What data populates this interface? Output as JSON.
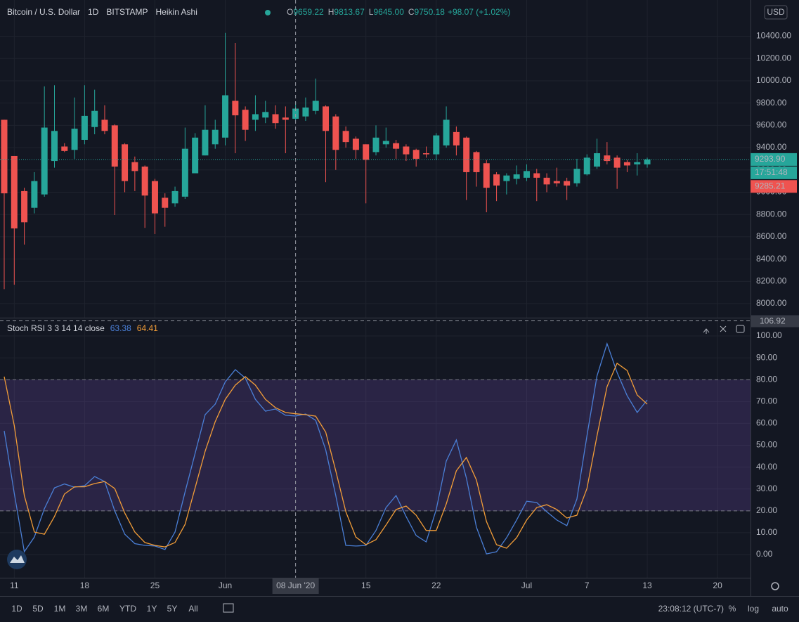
{
  "chart_data": [
    {
      "type": "candlestick",
      "title": "Bitcoin / U.S. Dollar",
      "interval": "1D",
      "exchange": "BITSTAMP",
      "chart_style": "Heikin Ashi",
      "legend": [
        {
          "key": "O",
          "text": "9659.22"
        },
        {
          "key": "H",
          "text": "9813.67"
        },
        {
          "key": "L",
          "text": "9645.00"
        },
        {
          "key": "C",
          "text": "9750.18"
        }
      ],
      "change": "+98.07 (+1.02%)",
      "currency": "USD",
      "x": [
        "2020-05-10",
        "2020-05-11",
        "2020-05-12",
        "2020-05-13",
        "2020-05-14",
        "2020-05-15",
        "2020-05-16",
        "2020-05-17",
        "2020-05-18",
        "2020-05-19",
        "2020-05-20",
        "2020-05-21",
        "2020-05-22",
        "2020-05-23",
        "2020-05-24",
        "2020-05-25",
        "2020-05-26",
        "2020-05-27",
        "2020-05-28",
        "2020-05-29",
        "2020-05-30",
        "2020-05-31",
        "2020-06-01",
        "2020-06-02",
        "2020-06-03",
        "2020-06-04",
        "2020-06-05",
        "2020-06-06",
        "2020-06-07",
        "2020-06-08",
        "2020-06-09",
        "2020-06-10",
        "2020-06-11",
        "2020-06-12",
        "2020-06-13",
        "2020-06-14",
        "2020-06-15",
        "2020-06-16",
        "2020-06-17",
        "2020-06-18",
        "2020-06-19",
        "2020-06-20",
        "2020-06-21",
        "2020-06-22",
        "2020-06-23",
        "2020-06-24",
        "2020-06-25",
        "2020-06-26",
        "2020-06-27",
        "2020-06-28",
        "2020-06-29",
        "2020-06-30",
        "2020-07-01",
        "2020-07-02",
        "2020-07-03",
        "2020-07-04",
        "2020-07-05",
        "2020-07-06",
        "2020-07-07",
        "2020-07-08",
        "2020-07-09",
        "2020-07-10",
        "2020-07-11",
        "2020-07-12",
        "2020-07-13"
      ],
      "open": [
        9650,
        9325,
        9010,
        8860,
        8980,
        9280,
        9410,
        9380,
        9470,
        9585,
        9650,
        9600,
        9430,
        9270,
        9230,
        9100,
        8950,
        8900,
        8960,
        9170,
        9330,
        9430,
        9490,
        9820,
        9740,
        9650,
        9670,
        9700,
        9670,
        9659.22,
        9680,
        9730,
        9770,
        9680,
        9550,
        9480,
        9430,
        9360,
        9430,
        9440,
        9410,
        9380,
        9350,
        9340,
        9420,
        9540,
        9490,
        9360,
        9260,
        9160,
        9100,
        9120,
        9130,
        9170,
        9130,
        9100,
        9100,
        9080,
        9160,
        9230,
        9330,
        9310,
        9270,
        9250,
        9250
      ],
      "high": [
        9650,
        9325,
        9040,
        9180,
        9950,
        9960,
        9440,
        9850,
        9960,
        9920,
        9780,
        9610,
        9440,
        9320,
        9240,
        9120,
        8990,
        9050,
        9580,
        9530,
        9780,
        9650,
        10430,
        10340,
        9770,
        9870,
        9820,
        9780,
        9770,
        9813.67,
        9850,
        10020,
        9780,
        9700,
        9590,
        9500,
        9430,
        9600,
        9580,
        9470,
        9430,
        9390,
        9410,
        9530,
        9770,
        9590,
        9500,
        9370,
        9290,
        9180,
        9170,
        9240,
        9250,
        9210,
        9170,
        9220,
        9130,
        9300,
        9340,
        9480,
        9450,
        9330,
        9290,
        9350,
        9310
      ],
      "low": [
        8130,
        8170,
        8530,
        8810,
        8960,
        9220,
        9360,
        9300,
        9430,
        9520,
        9520,
        8795,
        9000,
        9010,
        8680,
        8625,
        8690,
        8870,
        8940,
        9170,
        9330,
        9390,
        9420,
        9350,
        9460,
        9550,
        9620,
        9570,
        9350,
        9645,
        9640,
        9700,
        9090,
        9200,
        9400,
        9300,
        8900,
        9330,
        9400,
        9300,
        9280,
        9230,
        9310,
        9290,
        9400,
        9330,
        8930,
        9050,
        8820,
        8920,
        8980,
        9070,
        9100,
        8920,
        9000,
        9050,
        8930,
        9050,
        9150,
        9210,
        9250,
        9030,
        9180,
        9150,
        9220
      ],
      "close": [
        8990,
        8675,
        8730,
        9100,
        9580,
        9550,
        9370,
        9570,
        9685,
        9730,
        9550,
        9230,
        9100,
        9190,
        8970,
        8810,
        8860,
        9010,
        9390,
        9490,
        9560,
        9560,
        9870,
        9690,
        9560,
        9700,
        9720,
        9620,
        9650,
        9750.18,
        9760,
        9820,
        9550,
        9380,
        9450,
        9380,
        9290,
        9490,
        9460,
        9390,
        9340,
        9300,
        9340,
        9510,
        9650,
        9420,
        9180,
        9180,
        9040,
        9060,
        9150,
        9160,
        9190,
        9130,
        9070,
        9080,
        9060,
        9210,
        9310,
        9350,
        9280,
        9220,
        9240,
        9270,
        9293.9
      ],
      "up_color": "#26a69a",
      "down_color": "#ef5350",
      "xlim": [
        "2020-05-10",
        "2020-07-23"
      ],
      "ylim": [
        7874,
        10725
      ],
      "yticks": [
        {
          "value": 8000,
          "label": "8000.00"
        },
        {
          "value": 8200,
          "label": "8200.00"
        },
        {
          "value": 8400,
          "label": "8400.00"
        },
        {
          "value": 8600,
          "label": "8600.00"
        },
        {
          "value": 8800,
          "label": "8800.00"
        },
        {
          "value": 9000,
          "label": "9000.00"
        },
        {
          "value": 9200,
          "label": "9200.00"
        },
        {
          "value": 9400,
          "label": "9400.00"
        },
        {
          "value": 9600,
          "label": "9600.00"
        },
        {
          "value": 9800,
          "label": "9800.00"
        },
        {
          "value": 10000,
          "label": "10000.00"
        },
        {
          "value": 10200,
          "label": "10200.00"
        },
        {
          "value": 10400,
          "label": "10400.00"
        }
      ],
      "grid": true,
      "last_price": {
        "value": 9293.9,
        "label": "9293.90"
      },
      "countdown": "17:51:48",
      "prev_price": {
        "value": 9285.21,
        "label": "9285.21"
      },
      "crosshair": {
        "x": "2020-06-08",
        "label": "08 Jun '20"
      }
    },
    {
      "type": "line",
      "title": "Stoch RSI 3 3 14 14 close",
      "x": [
        "2020-05-10",
        "2020-05-11",
        "2020-05-12",
        "2020-05-13",
        "2020-05-14",
        "2020-05-15",
        "2020-05-16",
        "2020-05-17",
        "2020-05-18",
        "2020-05-19",
        "2020-05-20",
        "2020-05-21",
        "2020-05-22",
        "2020-05-23",
        "2020-05-24",
        "2020-05-25",
        "2020-05-26",
        "2020-05-27",
        "2020-05-28",
        "2020-05-29",
        "2020-05-30",
        "2020-05-31",
        "2020-06-01",
        "2020-06-02",
        "2020-06-03",
        "2020-06-04",
        "2020-06-05",
        "2020-06-06",
        "2020-06-07",
        "2020-06-08",
        "2020-06-09",
        "2020-06-10",
        "2020-06-11",
        "2020-06-12",
        "2020-06-13",
        "2020-06-14",
        "2020-06-15",
        "2020-06-16",
        "2020-06-17",
        "2020-06-18",
        "2020-06-19",
        "2020-06-20",
        "2020-06-21",
        "2020-06-22",
        "2020-06-23",
        "2020-06-24",
        "2020-06-25",
        "2020-06-26",
        "2020-06-27",
        "2020-06-28",
        "2020-06-29",
        "2020-06-30",
        "2020-07-01",
        "2020-07-02",
        "2020-07-03",
        "2020-07-04",
        "2020-07-05",
        "2020-07-06",
        "2020-07-07",
        "2020-07-08",
        "2020-07-09",
        "2020-07-10",
        "2020-07-11",
        "2020-07-12",
        "2020-07-13"
      ],
      "series": [
        {
          "color": "#4a7fd6",
          "values": [
            56.6,
            28,
            1.3,
            8,
            21,
            30.5,
            32.3,
            30.8,
            31.5,
            35.7,
            33.4,
            20,
            9.3,
            5,
            4.2,
            3.9,
            2.3,
            10.3,
            28.6,
            46.3,
            64,
            68.8,
            79,
            84.6,
            80.7,
            71,
            65.6,
            66.6,
            63.7,
            63.38,
            64.3,
            61.4,
            47.9,
            27,
            4.2,
            3.9,
            4.2,
            11,
            21.5,
            27,
            17.4,
            8.7,
            5.8,
            20.6,
            42.8,
            52.4,
            35,
            12.5,
            0.3,
            1.3,
            7.7,
            15.8,
            24.4,
            23.8,
            19.6,
            15.8,
            13.2,
            25.4,
            54.3,
            81.7,
            96.5,
            83.3,
            72.7,
            65,
            70.7
          ]
        },
        {
          "color": "#f29d38",
          "values": [
            81.4,
            59,
            27,
            10.3,
            9.3,
            17.4,
            27.7,
            31,
            31,
            32.5,
            33.4,
            30.2,
            19,
            10.3,
            5.5,
            4.2,
            3.5,
            5.5,
            13.8,
            30.5,
            47.3,
            60.8,
            71,
            77.5,
            81.4,
            77.5,
            71,
            67.2,
            65,
            64.41,
            64,
            63.3,
            56,
            38.3,
            19.6,
            8,
            4.5,
            6.8,
            13.5,
            20.6,
            22.2,
            18,
            11,
            11,
            23.2,
            38.3,
            44.4,
            34.1,
            15.1,
            4.5,
            2.9,
            7.7,
            15.8,
            21.5,
            22.8,
            20.6,
            16.7,
            18,
            30.2,
            54.3,
            76.8,
            87.5,
            84.2,
            73,
            68.8
          ]
        }
      ],
      "legend_values": [
        63.38,
        64.41
      ],
      "band": [
        20,
        80
      ],
      "band_color": "#7e57c2",
      "xlim": [
        "2020-05-10",
        "2020-07-23"
      ],
      "xticks": [
        {
          "value": "2020-05-11",
          "label": "11"
        },
        {
          "value": "2020-05-18",
          "label": "18"
        },
        {
          "value": "2020-05-25",
          "label": "25"
        },
        {
          "value": "2020-06-01",
          "label": "Jun"
        },
        {
          "value": "2020-06-15",
          "label": "15"
        },
        {
          "value": "2020-06-22",
          "label": "22"
        },
        {
          "value": "2020-07-01",
          "label": "Jul"
        },
        {
          "value": "2020-07-07",
          "label": "7"
        },
        {
          "value": "2020-07-13",
          "label": "13"
        },
        {
          "value": "2020-07-20",
          "label": "20"
        }
      ],
      "ylim": [
        -10.6,
        107.4
      ],
      "yticks": [
        {
          "value": 0,
          "label": "0.00"
        },
        {
          "value": 10,
          "label": "10.00"
        },
        {
          "value": 20,
          "label": "20.00"
        },
        {
          "value": 30,
          "label": "30.00"
        },
        {
          "value": 40,
          "label": "40.00"
        },
        {
          "value": 50,
          "label": "50.00"
        },
        {
          "value": 60,
          "label": "60.00"
        },
        {
          "value": 70,
          "label": "70.00"
        },
        {
          "value": 80,
          "label": "80.00"
        },
        {
          "value": 90,
          "label": "90.00"
        },
        {
          "value": 100,
          "label": "100.00"
        }
      ],
      "grid": true,
      "crosshair_y": {
        "value": 106.92,
        "label": "106.92"
      }
    }
  ],
  "toolbar": {
    "ranges": [
      "1D",
      "5D",
      "1M",
      "3M",
      "6M",
      "YTD",
      "1Y",
      "5Y",
      "All"
    ],
    "clock": "23:08:12 (UTC-7)",
    "scale_options": [
      "%",
      "log",
      "auto"
    ]
  }
}
